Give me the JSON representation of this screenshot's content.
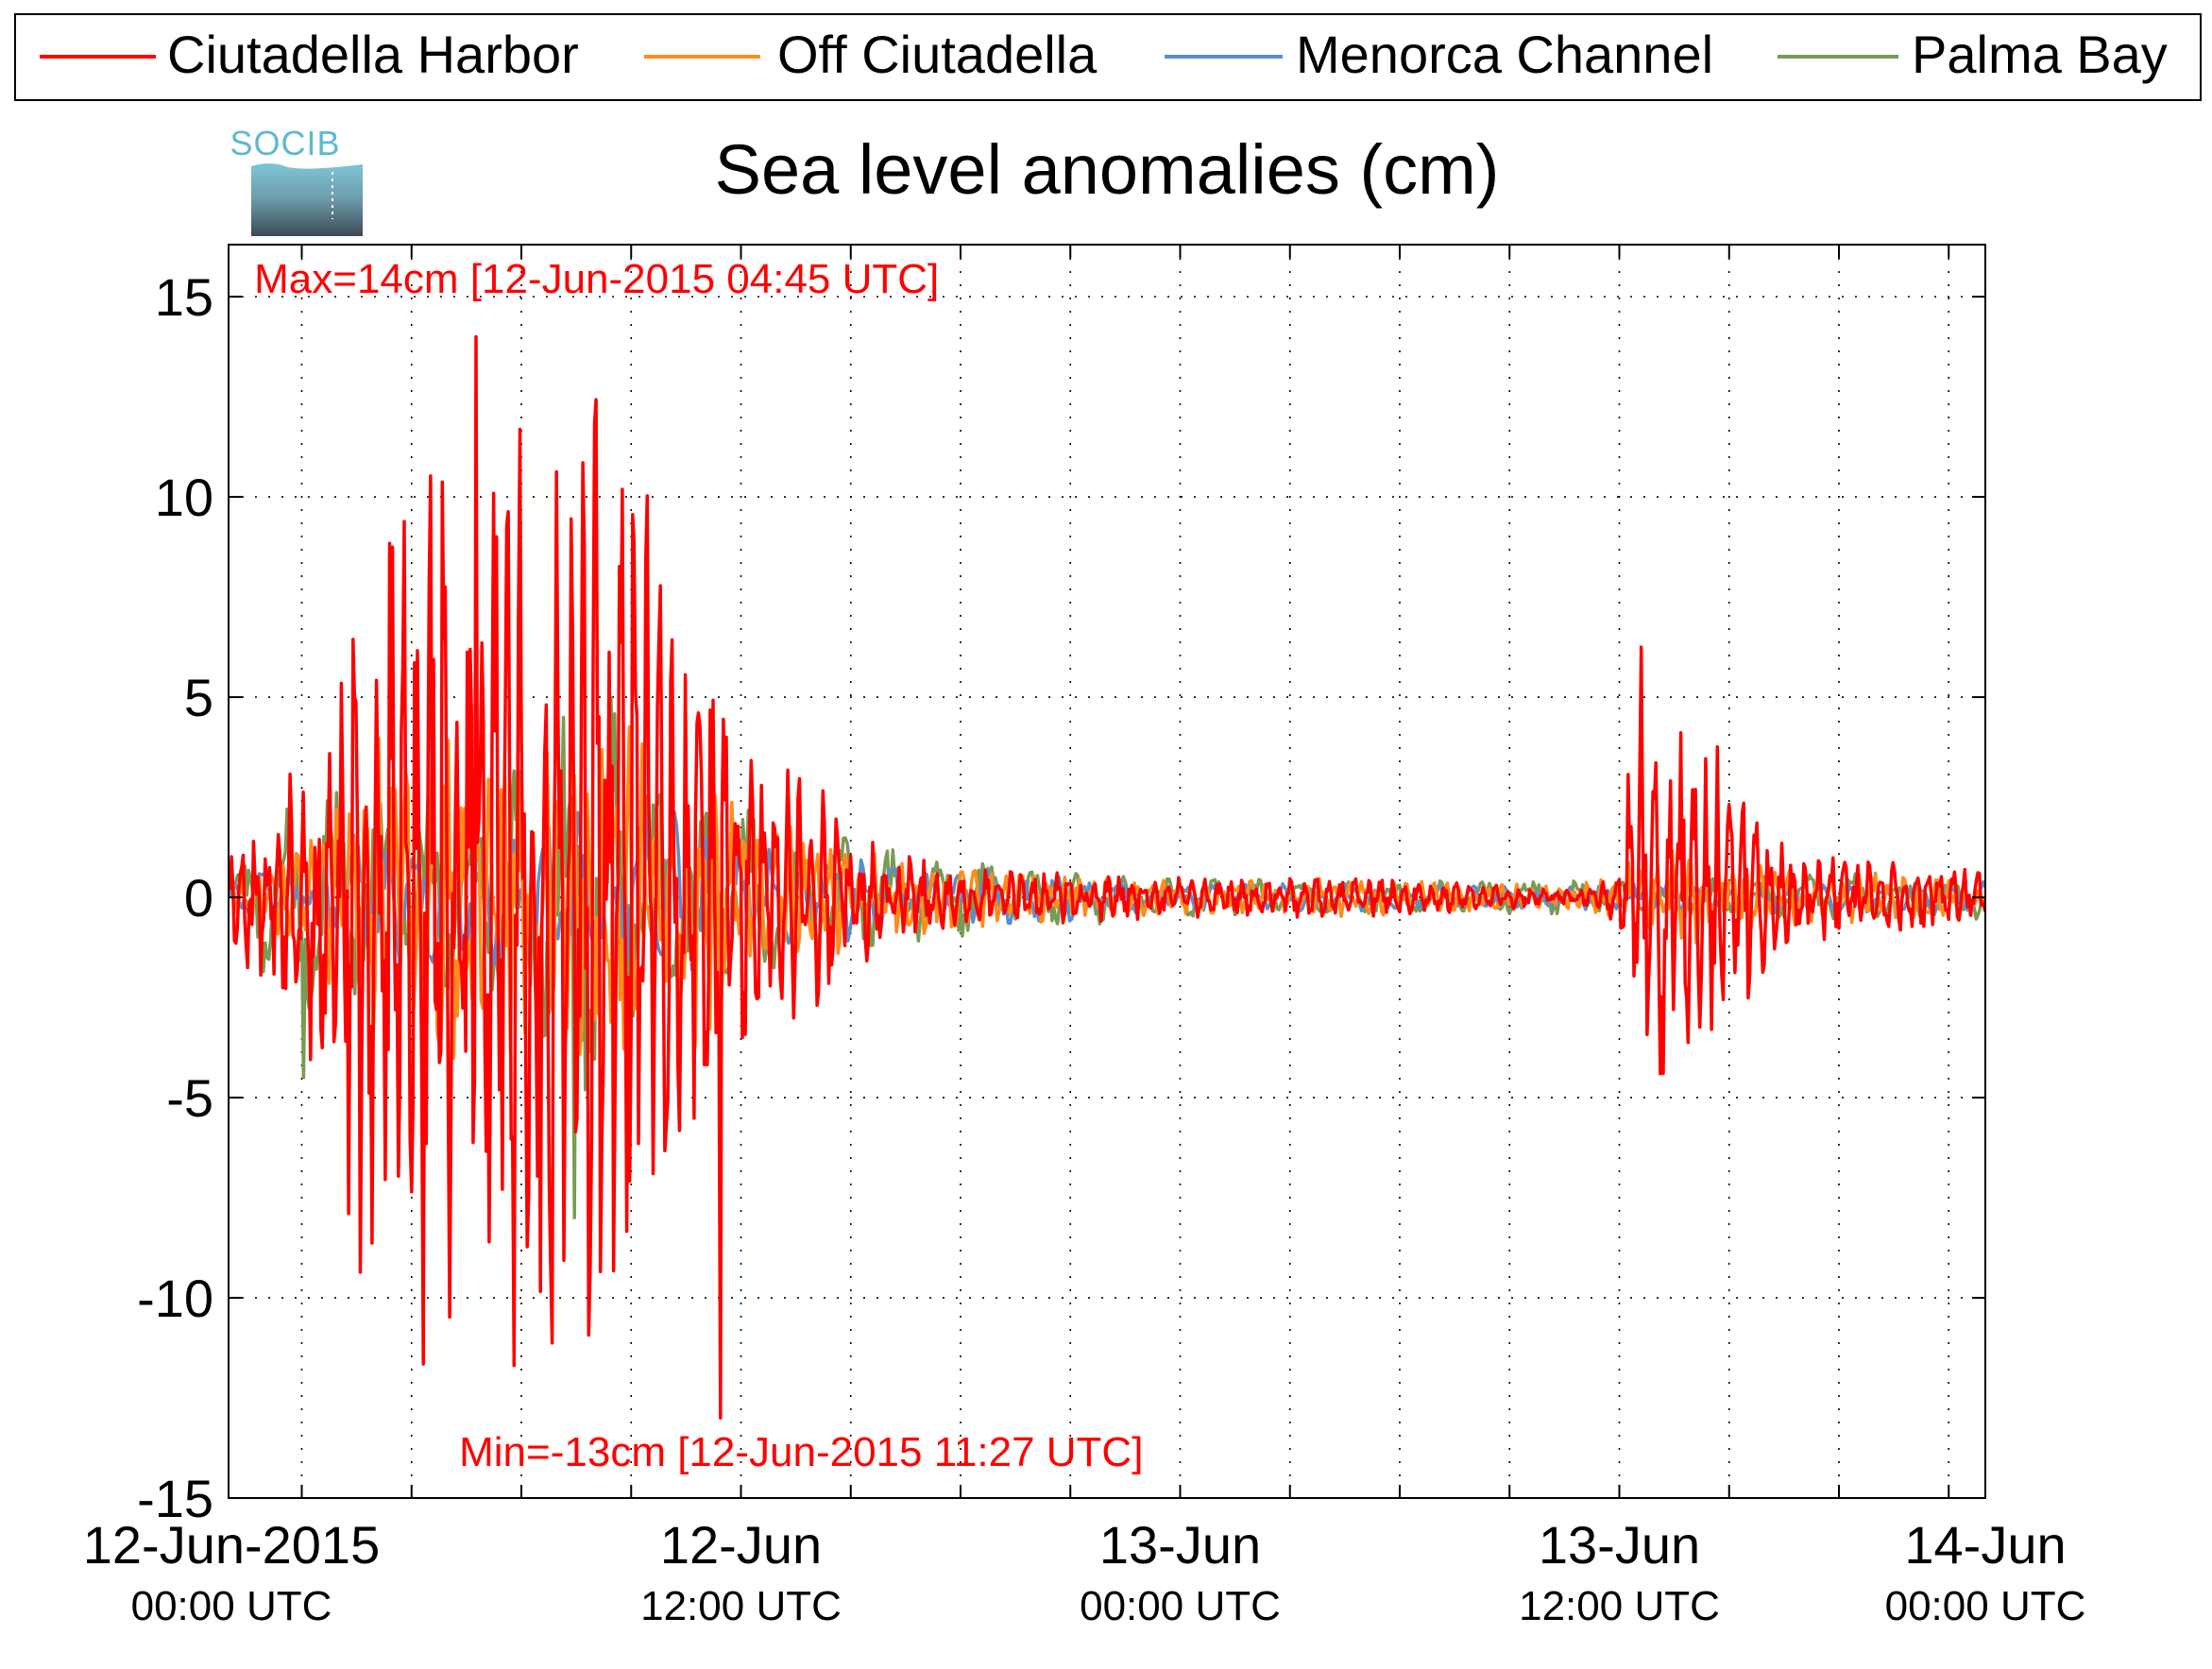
{
  "chart_data": {
    "type": "line",
    "title": "Sea level anomalies (cm)",
    "logo_text": "SOCIB",
    "ylim": [
      -15,
      16.3
    ],
    "y_ticks": [
      15,
      10,
      5,
      0,
      -5,
      -10,
      -15
    ],
    "y_tick_labels": [
      "15",
      "10",
      "5",
      "0",
      "-5",
      "-10",
      "-15"
    ],
    "x_range_hours": [
      -2,
      46
    ],
    "x_major_ticks": [
      {
        "h": 0,
        "label": "12-Jun-2015",
        "sublabel": "00:00 UTC"
      },
      {
        "h": 12,
        "label": "12-Jun",
        "sublabel": "12:00 UTC"
      },
      {
        "h": 24,
        "label": "13-Jun",
        "sublabel": "00:00 UTC"
      },
      {
        "h": 36,
        "label": "13-Jun",
        "sublabel": "12:00 UTC"
      },
      {
        "h": 48,
        "label": "14-Jun",
        "sublabel": "00:00 UTC"
      }
    ],
    "x_grid_hours": [
      0,
      3,
      6,
      9,
      12,
      15,
      18,
      21,
      24,
      27,
      30,
      33,
      36,
      39,
      42,
      45
    ],
    "grid": true,
    "legend_position": "top",
    "annotations": [
      {
        "text": "Max=14cm [12-Jun-2015 04:45 UTC]",
        "h": -1.3,
        "y": 15.1
      },
      {
        "text": "Min=-13cm [12-Jun-2015 11:27 UTC]",
        "h": 4.3,
        "y": -14.2
      }
    ],
    "series": [
      {
        "name": "Ciutadella Harbor",
        "color": "#ff0000",
        "envelope": [
          [
            -2,
            1.3
          ],
          [
            0,
            3.5
          ],
          [
            1,
            8
          ],
          [
            3,
            13
          ],
          [
            5,
            12
          ],
          [
            8,
            13
          ],
          [
            10,
            9
          ],
          [
            12,
            4.5
          ],
          [
            14,
            3
          ],
          [
            16,
            1.2
          ],
          [
            18,
            0.8
          ],
          [
            24,
            0.5
          ],
          [
            30,
            0.5
          ],
          [
            33,
            0.3
          ],
          [
            35,
            0.2
          ],
          [
            36,
            0.8
          ],
          [
            36.5,
            6.5
          ],
          [
            38,
            5
          ],
          [
            40,
            2
          ],
          [
            42,
            1
          ],
          [
            46,
            0.8
          ]
        ],
        "peaks": [
          {
            "h": 4.75,
            "y": 14
          },
          {
            "h": 11.45,
            "y": -13
          }
        ]
      },
      {
        "name": "Off Ciutadella",
        "color": "#ff8c1a",
        "envelope": [
          [
            -2,
            0.8
          ],
          [
            0,
            1.2
          ],
          [
            2,
            4
          ],
          [
            5,
            4.5
          ],
          [
            8,
            4.5
          ],
          [
            11,
            4
          ],
          [
            12,
            2.5
          ],
          [
            16,
            1
          ],
          [
            22,
            0.5
          ],
          [
            30,
            0.5
          ],
          [
            34,
            0.3
          ],
          [
            36,
            0.5
          ],
          [
            36.5,
            1.5
          ],
          [
            40,
            0.8
          ],
          [
            46,
            0.5
          ]
        ],
        "peaks": []
      },
      {
        "name": "Menorca Channel",
        "color": "#5b8fc9",
        "envelope": [
          [
            -2,
            0.5
          ],
          [
            0,
            1
          ],
          [
            2,
            1.8
          ],
          [
            5,
            2
          ],
          [
            9,
            2.5
          ],
          [
            11,
            2
          ],
          [
            14,
            1.2
          ],
          [
            18,
            0.8
          ],
          [
            24,
            0.4
          ],
          [
            34,
            0.3
          ],
          [
            40,
            0.4
          ],
          [
            46,
            0.4
          ]
        ],
        "peaks": []
      },
      {
        "name": "Palma Bay",
        "color": "#7a9a55",
        "envelope": [
          [
            -2,
            0.4
          ],
          [
            -1,
            2
          ],
          [
            0,
            3
          ],
          [
            2,
            2.5
          ],
          [
            5,
            3
          ],
          [
            8,
            6
          ],
          [
            10,
            3
          ],
          [
            12,
            2.5
          ],
          [
            15,
            1.5
          ],
          [
            20,
            0.8
          ],
          [
            24,
            0.5
          ],
          [
            30,
            0.4
          ],
          [
            36,
            0.5
          ],
          [
            42,
            0.6
          ],
          [
            46,
            0.6
          ]
        ],
        "peaks": [
          {
            "h": 0.05,
            "y": -4.5
          },
          {
            "h": 7.45,
            "y": -8
          }
        ]
      }
    ]
  }
}
